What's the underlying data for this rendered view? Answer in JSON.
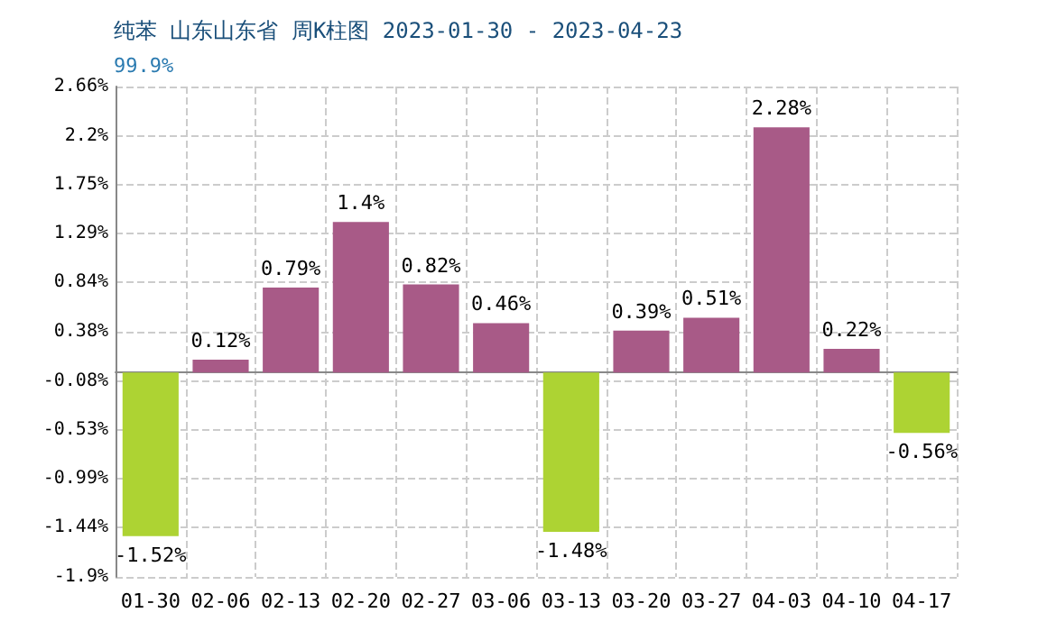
{
  "chart_data": {
    "type": "bar",
    "title": "纯苯 山东山东省 周K柱图 2023-01-30 - 2023-04-23",
    "subtitle": "99.9%",
    "categories": [
      "01-30",
      "02-06",
      "02-13",
      "02-20",
      "02-27",
      "03-06",
      "03-13",
      "03-20",
      "03-27",
      "04-03",
      "04-10",
      "04-17"
    ],
    "values": [
      -1.52,
      0.12,
      0.79,
      1.4,
      0.82,
      0.46,
      -1.48,
      0.39,
      0.51,
      2.28,
      0.22,
      -0.56
    ],
    "colors": [
      "#add333",
      "#a85a87",
      "#a85a87",
      "#a85a87",
      "#a85a87",
      "#a85a87",
      "#add333",
      "#a85a87",
      "#a85a87",
      "#a85a87",
      "#a85a87",
      "#add333"
    ],
    "value_labels": [
      "-1.52%",
      "0.12%",
      "0.79%",
      "1.4%",
      "0.82%",
      "0.46%",
      "-1.48%",
      "0.39%",
      "0.51%",
      "2.28%",
      "0.22%",
      "-0.56%"
    ],
    "ylim": [
      -1.9,
      2.66
    ],
    "yticks": [
      {
        "value": -1.9,
        "label": "-1.9%"
      },
      {
        "value": -1.44,
        "label": "-1.44%"
      },
      {
        "value": -0.99,
        "label": "-0.99%"
      },
      {
        "value": -0.53,
        "label": "-0.53%"
      },
      {
        "value": -0.08,
        "label": "-0.08%"
      },
      {
        "value": 0.38,
        "label": "0.38%"
      },
      {
        "value": 0.84,
        "label": "0.84%"
      },
      {
        "value": 1.29,
        "label": "1.29%"
      },
      {
        "value": 1.75,
        "label": "1.75%"
      },
      {
        "value": 2.2,
        "label": "2.2%"
      },
      {
        "value": 2.66,
        "label": "2.66%"
      }
    ],
    "grid": true
  }
}
